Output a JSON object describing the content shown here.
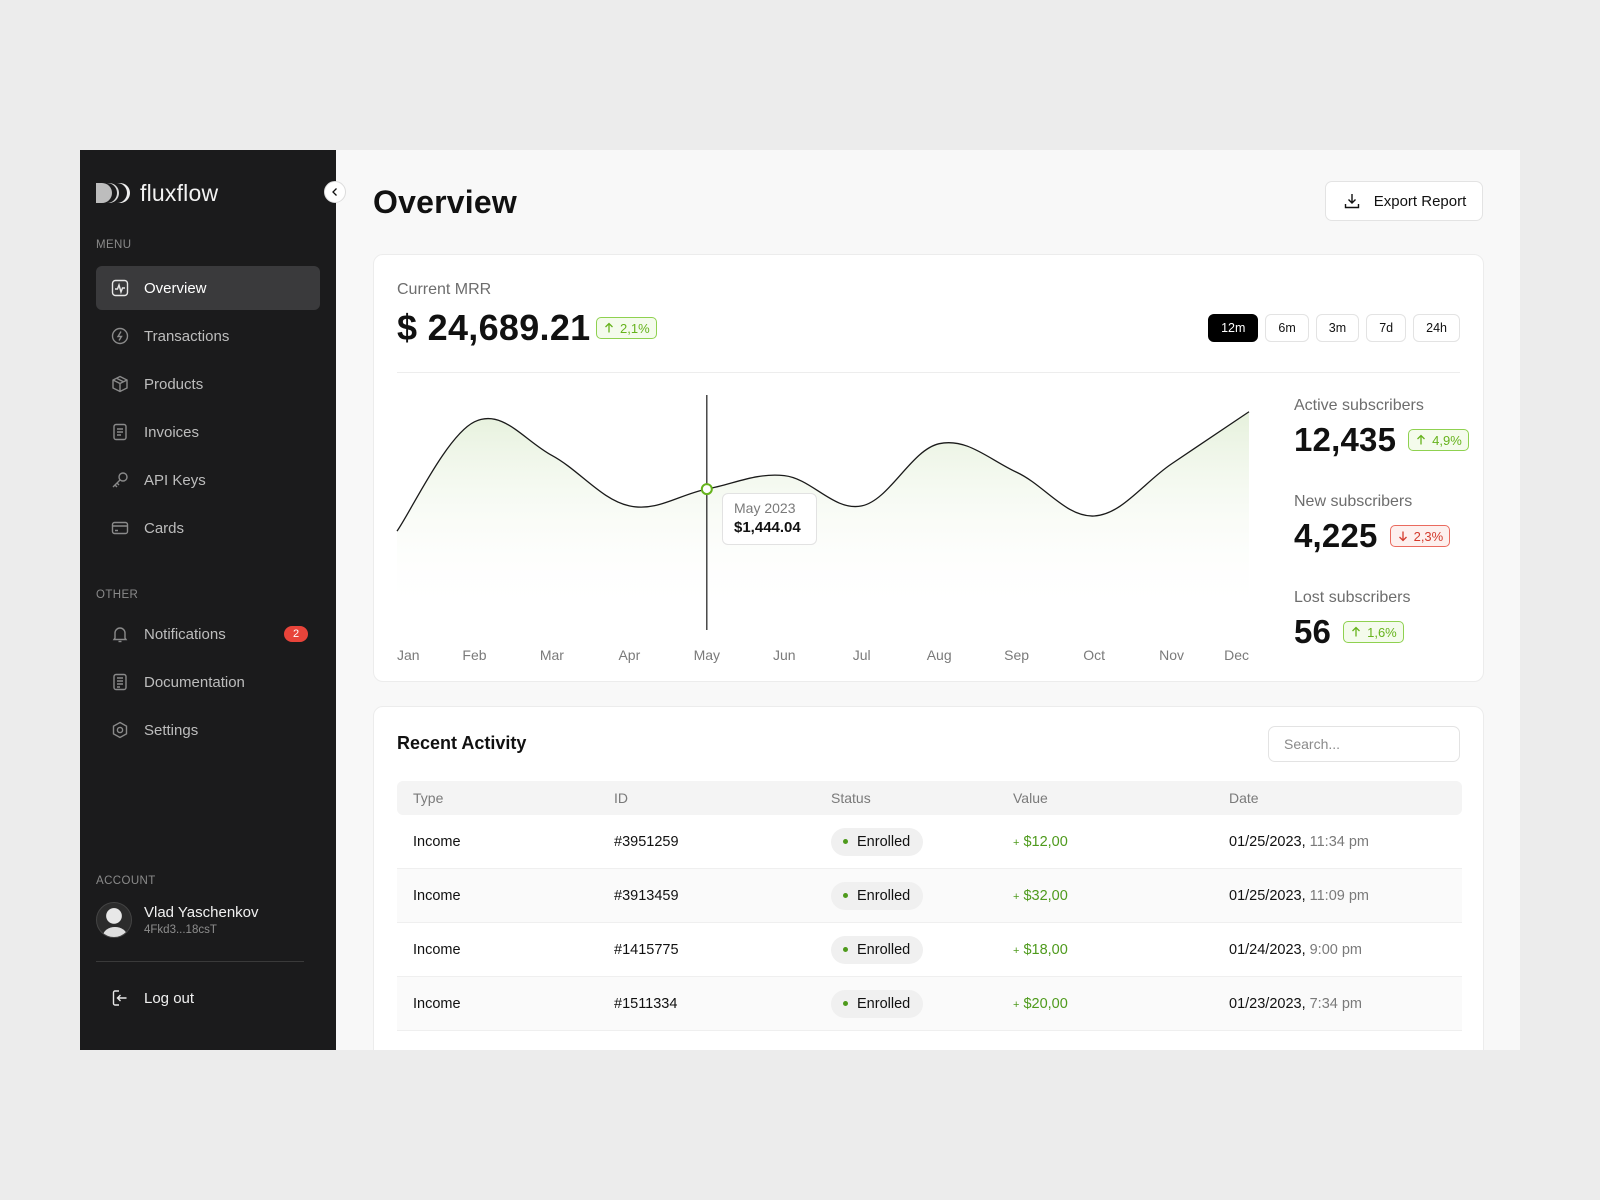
{
  "brand": {
    "name": "fluxflow"
  },
  "sidebar": {
    "menu_label": "MENU",
    "menu_items": [
      {
        "label": "Overview",
        "icon": "activity-chart-icon",
        "active": true
      },
      {
        "label": "Transactions",
        "icon": "lightning-circle-icon"
      },
      {
        "label": "Products",
        "icon": "box-icon"
      },
      {
        "label": "Invoices",
        "icon": "document-icon"
      },
      {
        "label": "API Keys",
        "icon": "key-icon"
      },
      {
        "label": "Cards",
        "icon": "credit-card-icon"
      }
    ],
    "other_label": "OTHER",
    "other_items": [
      {
        "label": "Notifications",
        "icon": "bell-icon",
        "badge": "2"
      },
      {
        "label": "Documentation",
        "icon": "docs-icon"
      },
      {
        "label": "Settings",
        "icon": "settings-icon"
      }
    ],
    "account_label": "ACCOUNT",
    "account": {
      "name": "Vlad Yaschenkov",
      "id": "4Fkd3...18csT"
    },
    "logout_label": "Log out"
  },
  "header": {
    "title": "Overview",
    "export_label": "Export Report"
  },
  "mrr": {
    "label": "Current MRR",
    "value": "$ 24,689.21",
    "change": "2,1%",
    "change_direction": "up",
    "ranges": [
      "12m",
      "6m",
      "3m",
      "7d",
      "24h"
    ],
    "active_range": "12m",
    "tooltip": {
      "label": "May 2023",
      "value": "$1,444.04"
    }
  },
  "stats": [
    {
      "label": "Active subscribers",
      "value": "12,435",
      "change": "4,9%",
      "direction": "up"
    },
    {
      "label": "New subscribers",
      "value": "4,225",
      "change": "2,3%",
      "direction": "down"
    },
    {
      "label": "Lost subscribers",
      "value": "56",
      "change": "1,6%",
      "direction": "up"
    }
  ],
  "chart_data": {
    "type": "line",
    "x": [
      "Jan",
      "Feb",
      "Mar",
      "Apr",
      "May",
      "Jun",
      "Jul",
      "Aug",
      "Sep",
      "Oct",
      "Nov",
      "Dec"
    ],
    "values": [
      35,
      100,
      80,
      50,
      60,
      68,
      50,
      87,
      70,
      44,
      75,
      106
    ],
    "highlight": {
      "x": "May",
      "label": "May 2023",
      "value": "$1,444.04"
    }
  },
  "activity": {
    "title": "Recent Activity",
    "search_placeholder": "Search...",
    "columns": [
      "Type",
      "ID",
      "Status",
      "Value",
      "Date"
    ],
    "rows": [
      {
        "type": "Income",
        "id": "#3951259",
        "status": "Enrolled",
        "value": "$12,00",
        "date": "01/25/2023,",
        "time": "11:34 pm"
      },
      {
        "type": "Income",
        "id": "#3913459",
        "status": "Enrolled",
        "value": "$32,00",
        "date": "01/25/2023,",
        "time": "11:09 pm"
      },
      {
        "type": "Income",
        "id": "#1415775",
        "status": "Enrolled",
        "value": "$18,00",
        "date": "01/24/2023,",
        "time": "9:00 pm"
      },
      {
        "type": "Income",
        "id": "#1511334",
        "status": "Enrolled",
        "value": "$20,00",
        "date": "01/23/2023,",
        "time": "7:34 pm"
      }
    ],
    "plus_sign": "+",
    "accent_color": "#4e9a1c"
  }
}
